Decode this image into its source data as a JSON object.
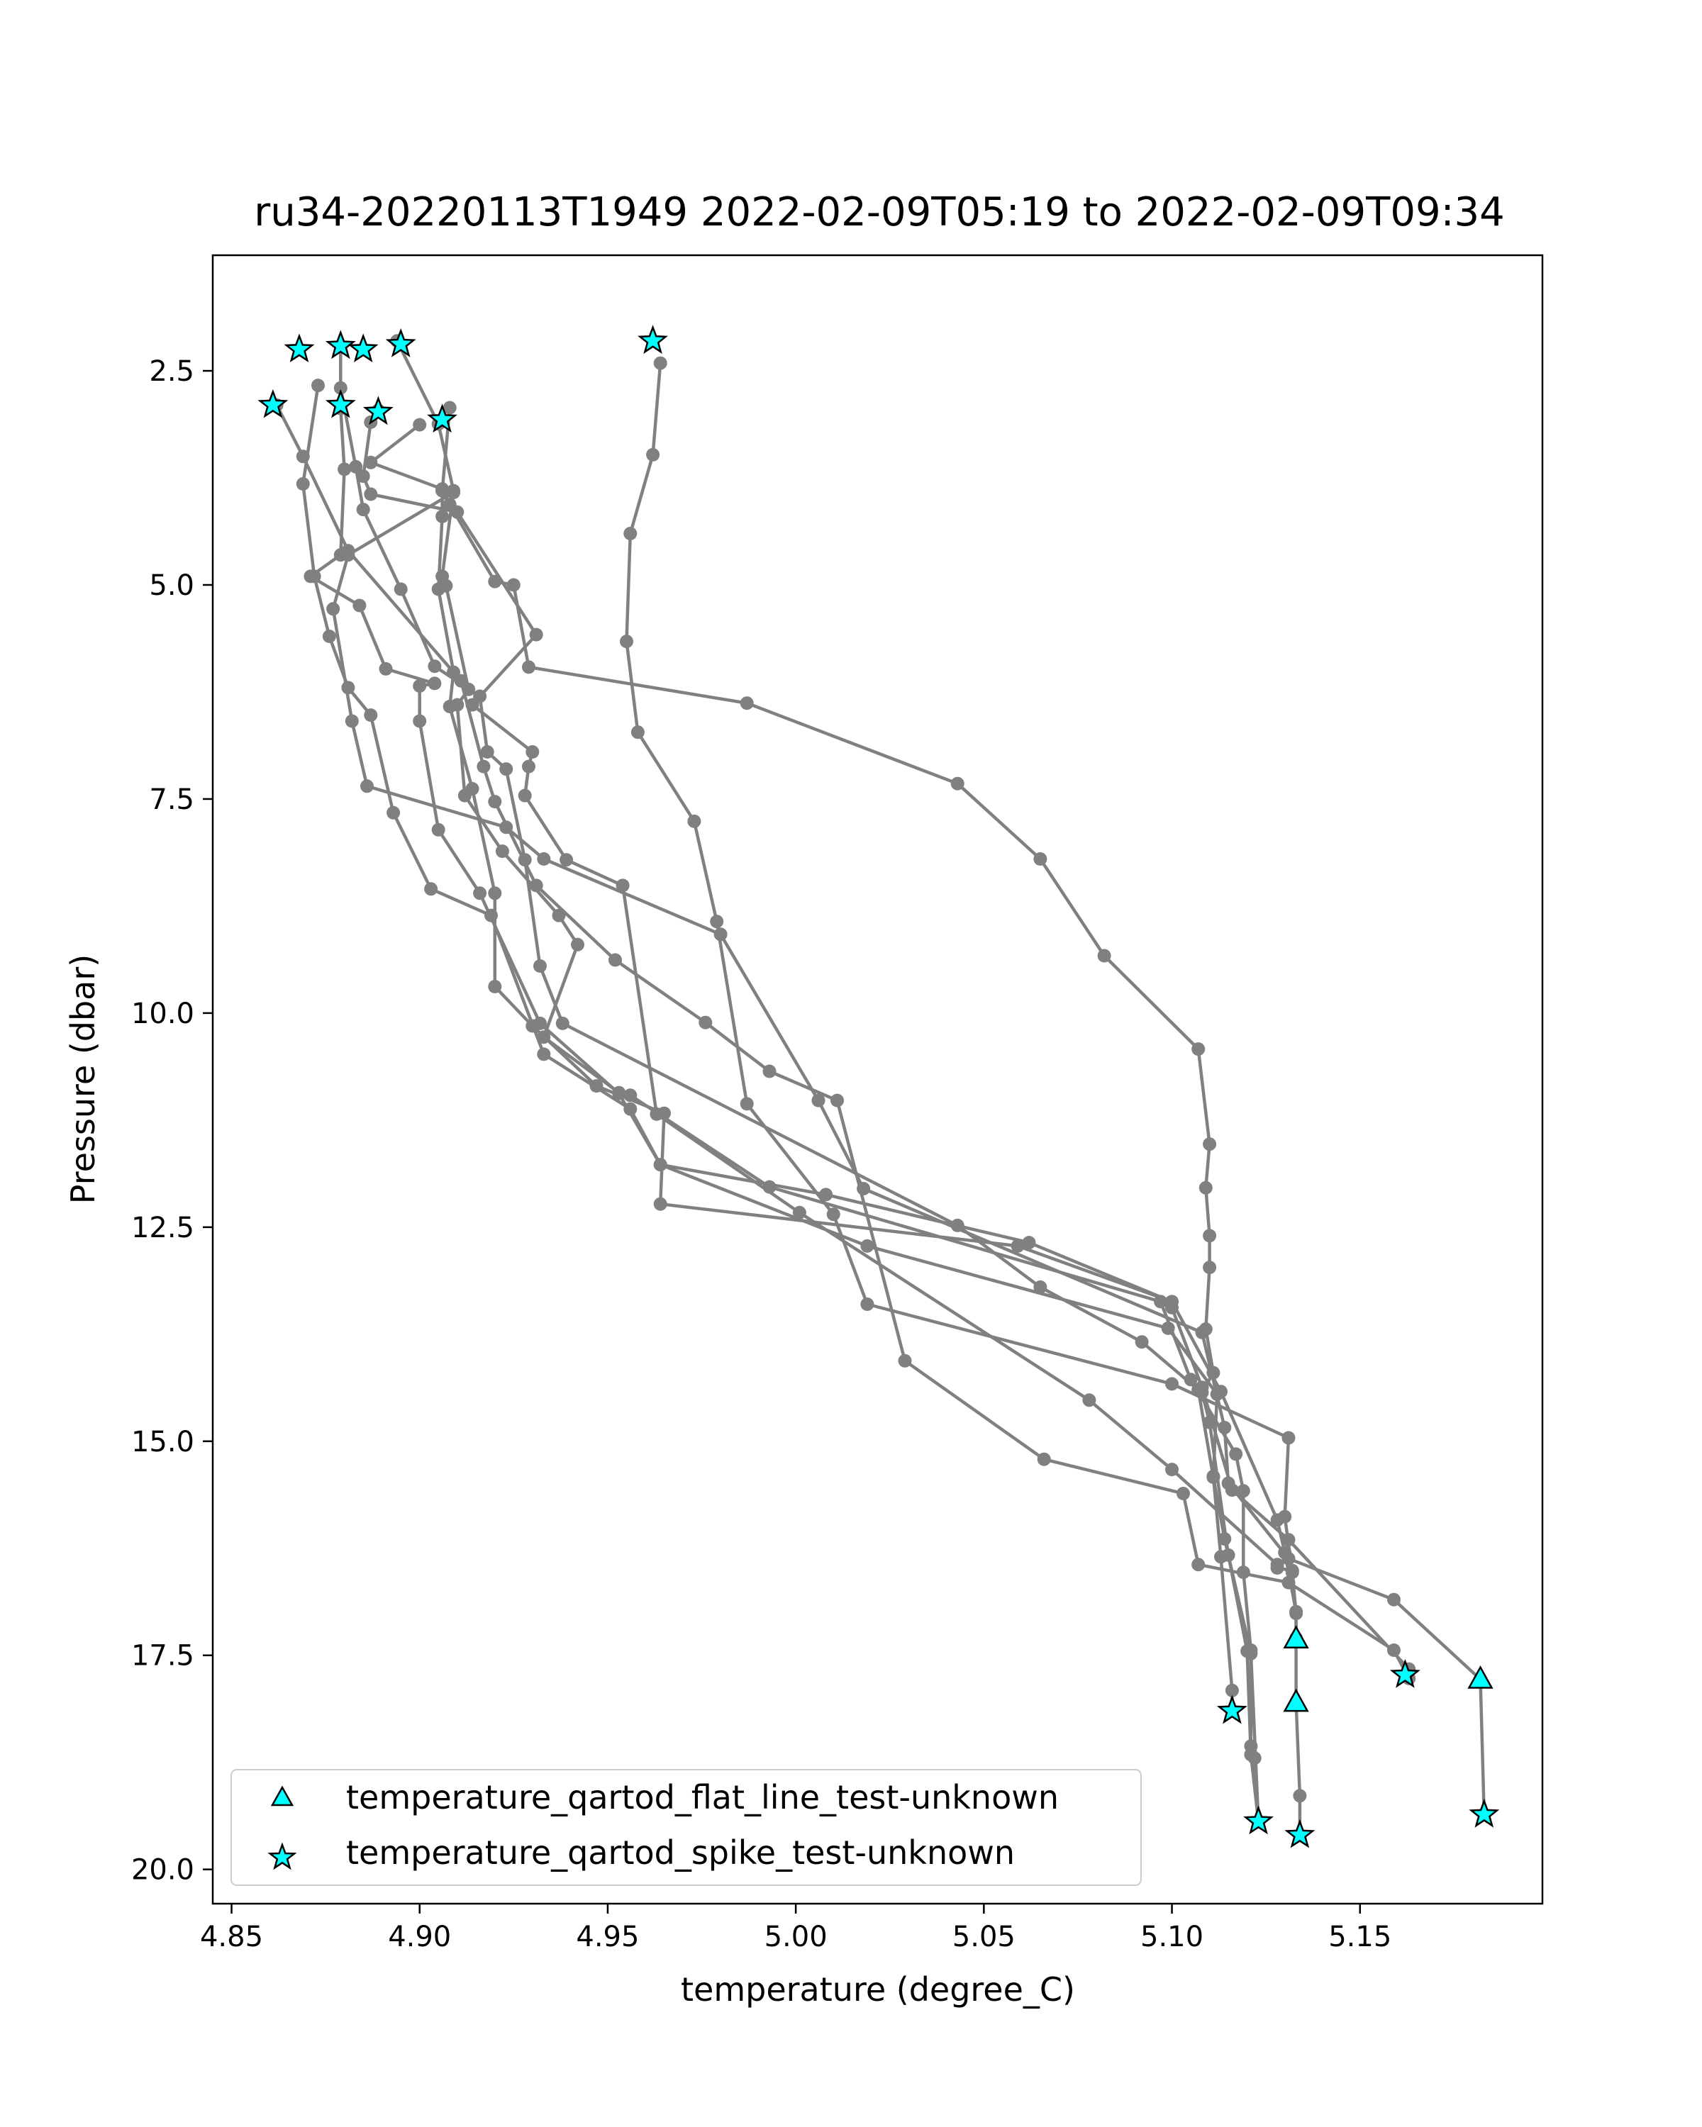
{
  "chart_data": {
    "type": "line",
    "title": "ru34-20220113T1949 2022-02-09T05:19 to 2022-02-09T09:34",
    "xlabel": "temperature (degree_C)",
    "ylabel": "Pressure (dbar)",
    "xlim": [
      4.845,
      5.1985
    ],
    "ylim": [
      20.4,
      1.15
    ],
    "y_inverted": true,
    "grid": false,
    "xticks": [
      "4.85",
      "4.90",
      "4.95",
      "5.00",
      "5.05",
      "5.10",
      "5.15"
    ],
    "yticks": [
      "2.5",
      "5.0",
      "7.5",
      "10.0",
      "12.5",
      "15.0",
      "17.5",
      "20.0"
    ],
    "legend_position": "lower-left",
    "colors": {
      "profile_line": "#808080",
      "flag_marker": "#00FFFF",
      "marker_edge": "#000000"
    },
    "series": [
      {
        "values": [
          [
            4.964,
            2.41
          ],
          [
            4.962,
            3.48
          ],
          [
            4.956,
            4.4
          ],
          [
            4.955,
            5.66
          ],
          [
            4.958,
            6.72
          ],
          [
            4.973,
            7.76
          ],
          [
            4.979,
            8.93
          ],
          [
            4.987,
            11.06
          ],
          [
            5.01,
            12.35
          ],
          [
            5.019,
            13.4
          ],
          [
            5.1,
            14.33
          ],
          [
            5.131,
            14.96
          ],
          [
            5.13,
            15.88
          ],
          [
            5.132,
            16.53
          ],
          [
            5.133,
            17.01
          ],
          [
            5.133,
            18.05
          ],
          [
            5.134,
            19.14
          ],
          [
            5.134,
            19.6
          ]
        ]
      },
      {
        "values": [
          [
            4.894,
            2.15
          ],
          [
            4.905,
            3.12
          ],
          [
            4.909,
            3.9
          ],
          [
            4.906,
            4.9
          ],
          [
            4.907,
            5.01
          ],
          [
            4.913,
            6.22
          ],
          [
            4.91,
            6.4
          ],
          [
            4.912,
            7.46
          ],
          [
            4.922,
            8.11
          ],
          [
            4.937,
            8.86
          ],
          [
            4.942,
            9.2
          ],
          [
            4.933,
            10.28
          ],
          [
            4.953,
            10.93
          ],
          [
            4.956,
            10.96
          ],
          [
            4.993,
            12.03
          ],
          [
            5.097,
            13.37
          ],
          [
            5.105,
            14.28
          ],
          [
            5.117,
            15.15
          ],
          [
            5.119,
            15.58
          ],
          [
            5.119,
            16.53
          ],
          [
            5.121,
            17.44
          ],
          [
            5.121,
            18.56
          ],
          [
            5.122,
            18.7
          ],
          [
            5.123,
            19.44
          ]
        ]
      },
      {
        "values": [
          [
            4.879,
            2.94
          ],
          [
            4.88,
            3.65
          ],
          [
            4.879,
            4.65
          ],
          [
            4.871,
            4.9
          ],
          [
            4.884,
            5.24
          ],
          [
            4.891,
            5.98
          ],
          [
            4.904,
            6.15
          ],
          [
            4.9,
            6.18
          ],
          [
            4.9,
            6.59
          ],
          [
            4.905,
            7.86
          ],
          [
            4.916,
            8.6
          ],
          [
            4.932,
            10.12
          ],
          [
            4.953,
            10.94
          ],
          [
            4.964,
            11.77
          ],
          [
            5.008,
            12.12
          ],
          [
            5.062,
            12.68
          ],
          [
            5.1,
            13.37
          ],
          [
            5.1,
            13.44
          ],
          [
            5.108,
            14.37
          ],
          [
            5.116,
            15.57
          ],
          [
            5.131,
            16.15
          ],
          [
            5.163,
            17.66
          ]
        ]
      },
      {
        "values": [
          [
            4.908,
            2.93
          ],
          [
            4.906,
            3.9
          ],
          [
            4.906,
            4.2
          ],
          [
            4.905,
            5.05
          ],
          [
            4.909,
            6.02
          ],
          [
            4.908,
            6.42
          ],
          [
            4.914,
            7.38
          ],
          [
            4.92,
            8.6
          ],
          [
            4.92,
            9.69
          ],
          [
            4.93,
            10.15
          ],
          [
            4.947,
            10.85
          ],
          [
            4.965,
            11.17
          ],
          [
            4.964,
            12.23
          ],
          [
            5.059,
            12.72
          ],
          [
            5.1,
            13.37
          ],
          [
            5.113,
            14.42
          ],
          [
            5.128,
            15.92
          ],
          [
            5.13,
            16.3
          ],
          [
            5.133,
            16.99
          ],
          [
            5.133,
            17.3
          ]
        ]
      },
      {
        "values": [
          [
            4.873,
            2.67
          ],
          [
            4.869,
            3.82
          ],
          [
            4.872,
            4.9
          ],
          [
            4.876,
            5.6
          ],
          [
            4.881,
            6.2
          ],
          [
            4.887,
            6.52
          ],
          [
            4.893,
            7.66
          ],
          [
            4.903,
            8.55
          ],
          [
            4.919,
            8.86
          ],
          [
            4.933,
            10.48
          ],
          [
            4.956,
            11.12
          ],
          [
            4.964,
            11.77
          ],
          [
            5.019,
            12.72
          ],
          [
            5.099,
            13.68
          ],
          [
            5.112,
            14.45
          ],
          [
            5.111,
            15.41
          ],
          [
            5.113,
            16.35
          ],
          [
            5.116,
            17.91
          ],
          [
            5.116,
            18.15
          ]
        ]
      },
      {
        "values": [
          [
            4.909,
            3.92
          ],
          [
            4.881,
            4.65
          ],
          [
            4.877,
            5.28
          ],
          [
            4.882,
            6.59
          ],
          [
            4.886,
            7.35
          ],
          [
            4.923,
            7.83
          ],
          [
            4.933,
            8.2
          ],
          [
            4.98,
            9.08
          ],
          [
            5.006,
            11.02
          ],
          [
            5.018,
            12.05
          ],
          [
            5.108,
            13.73
          ],
          [
            5.114,
            14.84
          ],
          [
            5.115,
            15.49
          ],
          [
            5.131,
            16.37
          ],
          [
            5.159,
            16.85
          ],
          [
            5.182,
            17.78
          ],
          [
            5.183,
            19.36
          ]
        ]
      },
      {
        "values": [
          [
            4.879,
            2.21
          ],
          [
            4.879,
            2.7
          ],
          [
            4.883,
            3.62
          ],
          [
            4.885,
            4.12
          ],
          [
            4.895,
            5.05
          ],
          [
            4.904,
            5.95
          ],
          [
            4.916,
            6.3
          ],
          [
            4.918,
            6.95
          ],
          [
            4.923,
            7.15
          ],
          [
            4.928,
            8.21
          ],
          [
            4.932,
            9.45
          ],
          [
            4.938,
            10.12
          ],
          [
            5.043,
            12.48
          ],
          [
            5.065,
            13.2
          ],
          [
            5.092,
            13.84
          ],
          [
            5.107,
            14.4
          ],
          [
            5.111,
            15.42
          ],
          [
            5.114,
            16.14
          ],
          [
            5.121,
            17.48
          ],
          [
            5.123,
            19.44
          ]
        ]
      },
      {
        "values": [
          [
            4.889,
            2.96
          ],
          [
            4.887,
            3.1
          ],
          [
            4.885,
            3.73
          ],
          [
            4.887,
            3.94
          ],
          [
            4.91,
            4.15
          ],
          [
            4.931,
            5.58
          ],
          [
            4.914,
            6.4
          ],
          [
            4.93,
            6.95
          ],
          [
            4.929,
            7.12
          ],
          [
            4.928,
            7.46
          ],
          [
            4.939,
            8.21
          ],
          [
            4.954,
            8.51
          ],
          [
            4.963,
            11.18
          ],
          [
            5.001,
            12.33
          ],
          [
            5.078,
            14.52
          ],
          [
            5.1,
            15.33
          ],
          [
            5.128,
            16.44
          ],
          [
            5.128,
            16.48
          ],
          [
            5.132,
            16.51
          ]
        ]
      },
      {
        "values": [
          [
            4.862,
            2.9
          ],
          [
            4.869,
            3.5
          ],
          [
            4.881,
            4.6
          ],
          [
            4.911,
            6.12
          ],
          [
            4.917,
            7.12
          ],
          [
            4.92,
            7.53
          ],
          [
            4.931,
            8.51
          ],
          [
            4.952,
            9.38
          ],
          [
            4.976,
            10.11
          ],
          [
            4.993,
            10.68
          ],
          [
            5.011,
            11.02
          ],
          [
            5.029,
            14.06
          ],
          [
            5.066,
            15.21
          ],
          [
            5.103,
            15.61
          ],
          [
            5.107,
            16.44
          ],
          [
            5.131,
            16.65
          ],
          [
            5.159,
            17.44
          ],
          [
            5.163,
            17.77
          ]
        ]
      },
      {
        "values": [
          [
            4.9,
            3.13
          ],
          [
            4.887,
            3.57
          ],
          [
            4.906,
            3.88
          ],
          [
            4.908,
            4.06
          ],
          [
            4.92,
            4.96
          ],
          [
            4.925,
            5.0
          ],
          [
            4.929,
            5.96
          ],
          [
            4.987,
            6.38
          ],
          [
            5.043,
            7.32
          ],
          [
            5.065,
            8.2
          ],
          [
            5.082,
            9.33
          ],
          [
            5.107,
            10.42
          ],
          [
            5.11,
            11.53
          ],
          [
            5.109,
            12.04
          ],
          [
            5.11,
            12.6
          ],
          [
            5.11,
            12.97
          ],
          [
            5.109,
            13.69
          ],
          [
            5.111,
            14.2
          ],
          [
            5.108,
            14.43
          ],
          [
            5.11,
            14.78
          ],
          [
            5.115,
            16.33
          ],
          [
            5.12,
            17.45
          ],
          [
            5.121,
            18.66
          ],
          [
            5.123,
            19.44
          ]
        ]
      }
    ],
    "flat_line_flags": {
      "name": "temperature_qartod_flat_line_test-unknown",
      "points": [
        [
          5.133,
          17.31
        ],
        [
          5.133,
          18.05
        ],
        [
          5.182,
          17.78
        ]
      ]
    },
    "spike_flags": {
      "name": "temperature_qartod_spike_test-unknown",
      "points": [
        [
          4.868,
          2.25
        ],
        [
          4.879,
          2.21
        ],
        [
          4.885,
          2.25
        ],
        [
          4.895,
          2.19
        ],
        [
          4.962,
          2.15
        ],
        [
          4.861,
          2.9
        ],
        [
          4.879,
          2.9
        ],
        [
          4.889,
          2.98
        ],
        [
          4.906,
          3.07
        ],
        [
          5.116,
          18.15
        ],
        [
          5.162,
          17.73
        ],
        [
          5.123,
          19.44
        ],
        [
          5.134,
          19.6
        ],
        [
          5.183,
          19.36
        ]
      ]
    }
  }
}
